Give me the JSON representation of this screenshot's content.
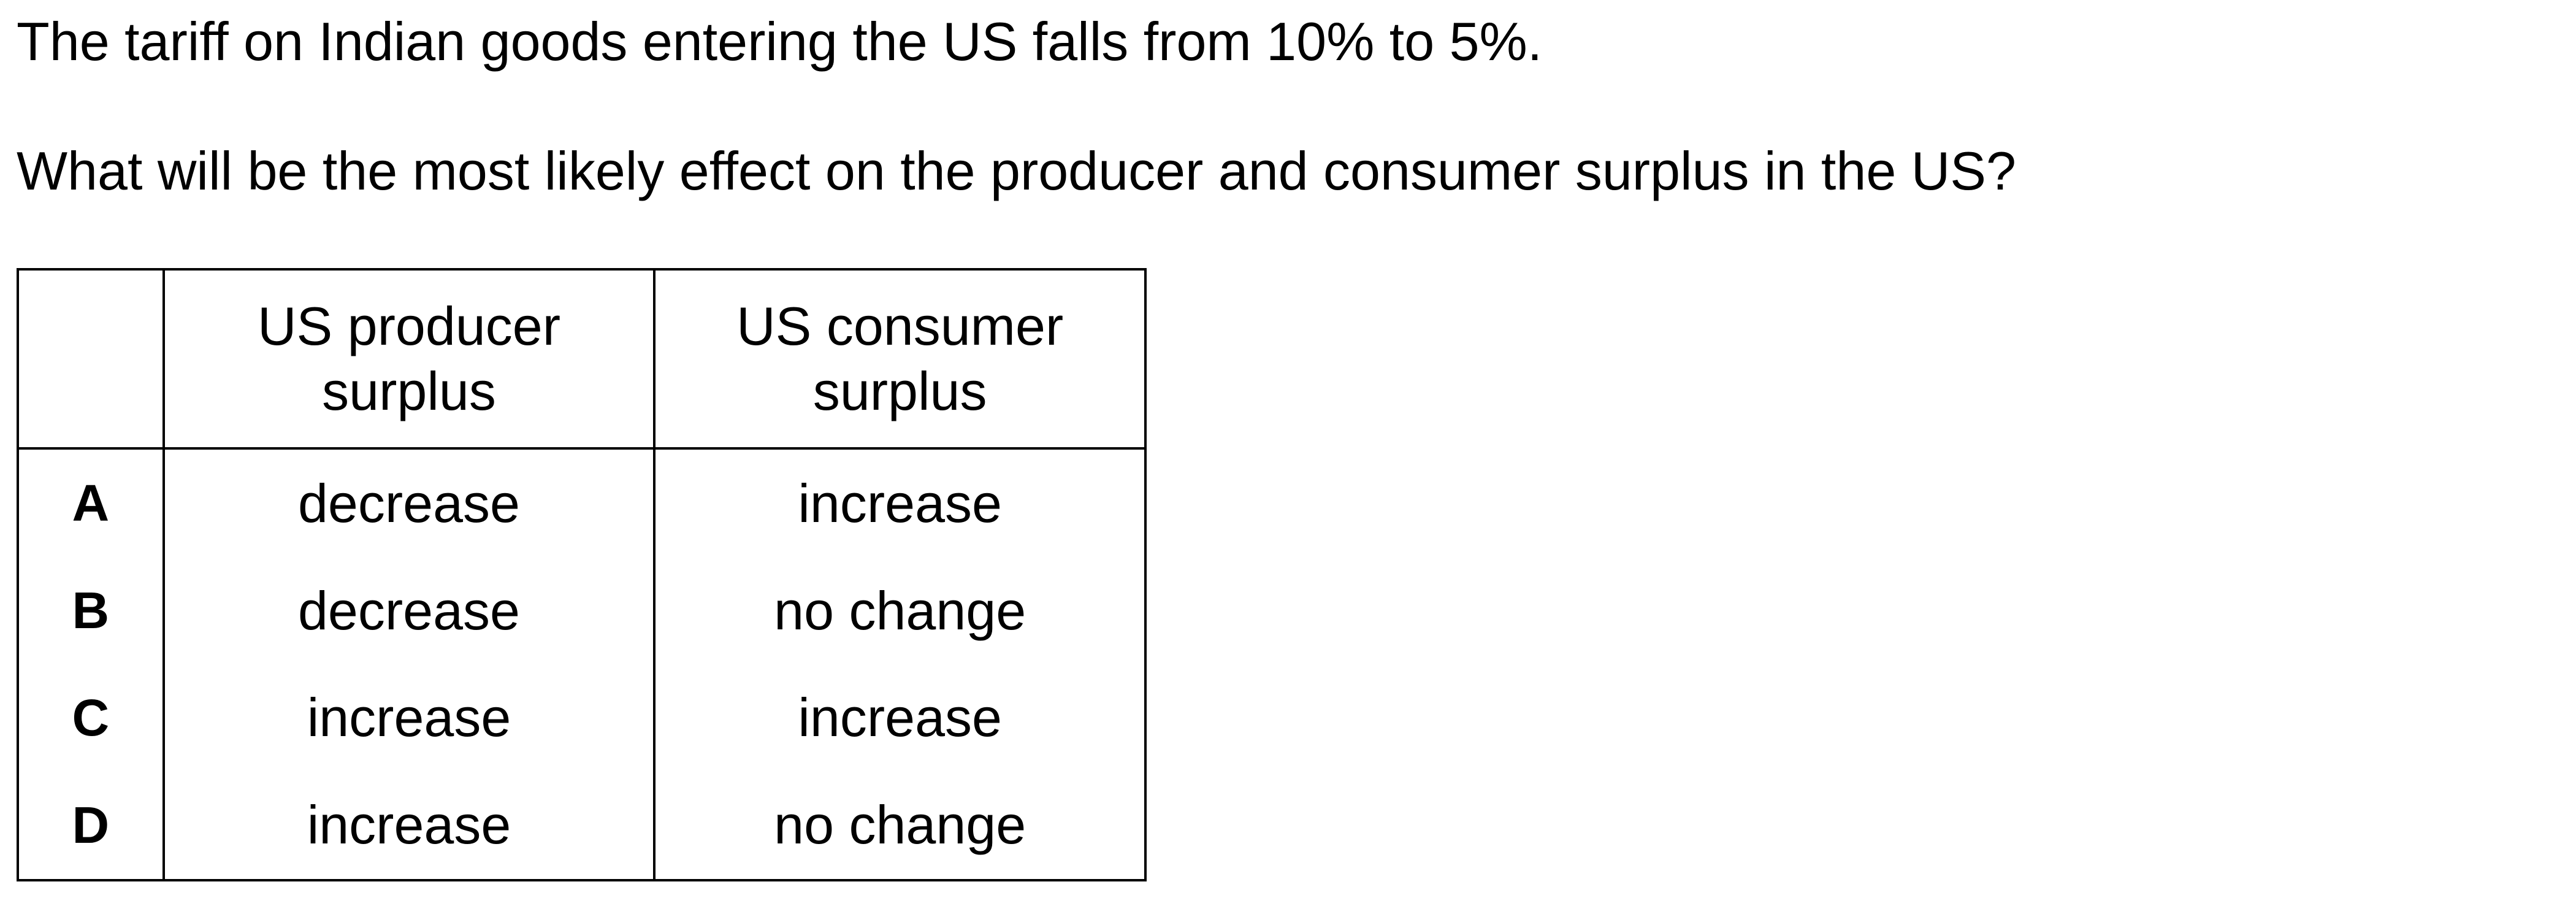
{
  "question": {
    "line1": "The tariff on Indian goods entering the US falls from 10% to 5%.",
    "line2": "What will be the most likely effect on the producer and consumer surplus in the US?"
  },
  "table": {
    "headers": {
      "letter": "",
      "producer": "US producer\nsurplus",
      "consumer": "US consumer\nsurplus"
    },
    "rows": [
      {
        "letter": "A",
        "producer": "decrease",
        "consumer": "increase"
      },
      {
        "letter": "B",
        "producer": "decrease",
        "consumer": "no change"
      },
      {
        "letter": "C",
        "producer": "increase",
        "consumer": "increase"
      },
      {
        "letter": "D",
        "producer": "increase",
        "consumer": "no change"
      }
    ]
  }
}
